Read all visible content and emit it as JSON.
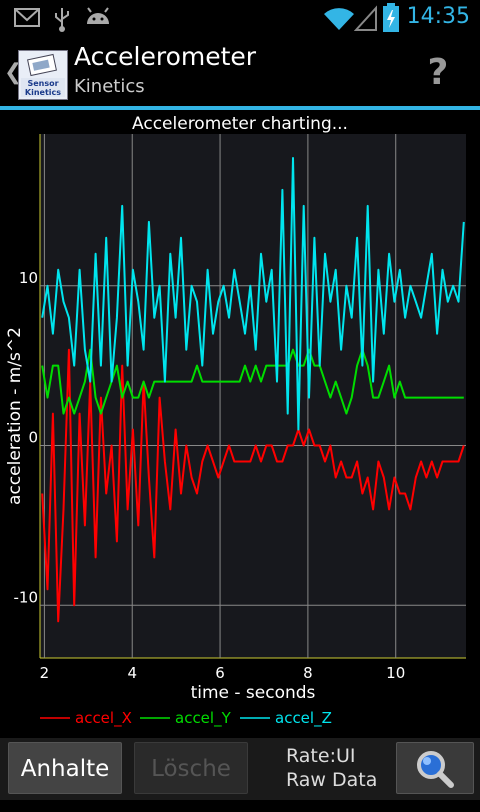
{
  "status": {
    "time": "14:35",
    "icons": [
      "gmail-icon",
      "usb-icon",
      "android-debug-icon",
      "wifi-icon",
      "signal-icon",
      "battery-charging-icon"
    ]
  },
  "header": {
    "title": "Accelerometer",
    "subtitle": "Kinetics",
    "app_icon_text": "Sensor Kinetics",
    "help_label": "?"
  },
  "chart_data": {
    "type": "line",
    "title": "Accelerometer charting...",
    "xlabel": "time - seconds",
    "ylabel": "acceleration - m/s^2",
    "xlim": [
      1.9,
      11.6
    ],
    "ylim": [
      -13.3,
      19.5
    ],
    "x_ticks": [
      2,
      4,
      6,
      8,
      10
    ],
    "y_ticks": [
      -10,
      0,
      10
    ],
    "grid": true,
    "legend_position": "bottom",
    "series": [
      {
        "name": "accel_X",
        "color": "#ff0000",
        "values": [
          -3,
          -9,
          2,
          -11,
          -4,
          6,
          -10,
          2,
          -5,
          4,
          -7,
          3,
          -3,
          0,
          -6,
          5,
          -4,
          1,
          -5,
          4,
          -2,
          -7,
          3,
          -1,
          -4,
          1,
          -3,
          0,
          -2,
          -3,
          -1,
          0,
          -1,
          -2,
          -1,
          0,
          -1,
          -1,
          -1,
          -1,
          0,
          -1,
          0,
          0,
          -1,
          -1,
          0,
          0,
          1,
          0,
          1,
          0,
          0,
          -1,
          0,
          -2,
          -1,
          -2,
          -2,
          -1,
          -3,
          -2,
          -4,
          -1,
          -2,
          -4,
          -2,
          -3,
          -3,
          -4,
          -2,
          -1,
          -2,
          -1,
          -2,
          -1,
          -1,
          -1,
          -1,
          0
        ]
      },
      {
        "name": "accel_Y",
        "color": "#00dd00",
        "values": [
          5,
          3,
          5,
          5,
          2,
          3,
          2,
          3,
          4,
          6,
          3,
          2,
          3,
          4,
          5,
          3,
          4,
          3,
          3,
          4,
          3,
          4,
          4,
          4,
          4,
          4,
          4,
          4,
          4,
          5,
          4,
          4,
          4,
          4,
          4,
          4,
          4,
          4,
          5,
          4,
          5,
          4,
          5,
          5,
          5,
          5,
          5,
          6,
          5,
          5,
          6,
          5,
          5,
          4,
          3,
          4,
          3,
          2,
          3,
          5,
          6,
          5,
          3,
          3,
          4,
          5,
          3,
          4,
          3,
          3,
          3,
          3,
          3,
          3,
          3,
          3,
          3,
          3,
          3,
          3
        ]
      },
      {
        "name": "accel_Z",
        "color": "#00e5ee",
        "values": [
          8,
          10,
          7,
          11,
          9,
          8,
          5,
          11,
          6,
          4,
          12,
          5,
          13,
          4,
          8,
          15,
          5,
          11,
          9,
          6,
          14,
          8,
          10,
          4,
          12,
          8,
          13,
          6,
          10,
          9,
          5,
          11,
          7,
          9,
          10,
          8,
          11,
          9,
          7,
          10,
          6,
          12,
          9,
          11,
          4,
          16,
          2,
          18,
          1,
          15,
          3,
          13,
          5,
          12,
          9,
          11,
          6,
          10,
          8,
          13,
          5,
          15,
          4,
          11,
          7,
          12,
          9,
          11,
          8,
          10,
          9,
          8,
          10,
          12,
          7,
          11,
          9,
          10,
          9,
          14
        ]
      }
    ]
  },
  "footer": {
    "pause_label": "Anhalte",
    "clear_label": "Lösche",
    "rate_label": "Rate:UI",
    "mode_label": "Raw Data"
  }
}
